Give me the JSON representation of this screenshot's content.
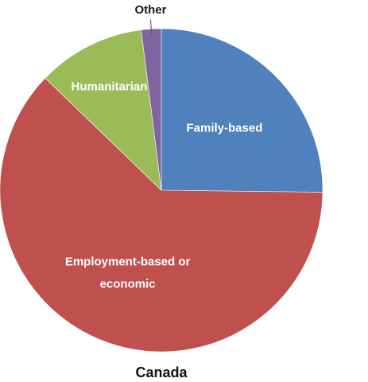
{
  "chart_data": {
    "type": "pie",
    "caption": "Canada",
    "start_angle_deg": 0,
    "direction": "clockwise",
    "slices": [
      {
        "label": "Family-based",
        "value": 25.2,
        "color": "#4F81BD",
        "label_lines": [
          "Family-based"
        ]
      },
      {
        "label": "Employment-based or economic",
        "value": 62.0,
        "color": "#C0504D",
        "label_lines": [
          "Employment-based or",
          "economic"
        ]
      },
      {
        "label": "Humanitarian",
        "value": 10.8,
        "color": "#9BBB59",
        "label_lines": [
          "Humanitarian"
        ]
      },
      {
        "label": "Other",
        "value": 2.0,
        "color": "#8064A2",
        "label_lines": [
          "Other"
        ]
      }
    ]
  }
}
